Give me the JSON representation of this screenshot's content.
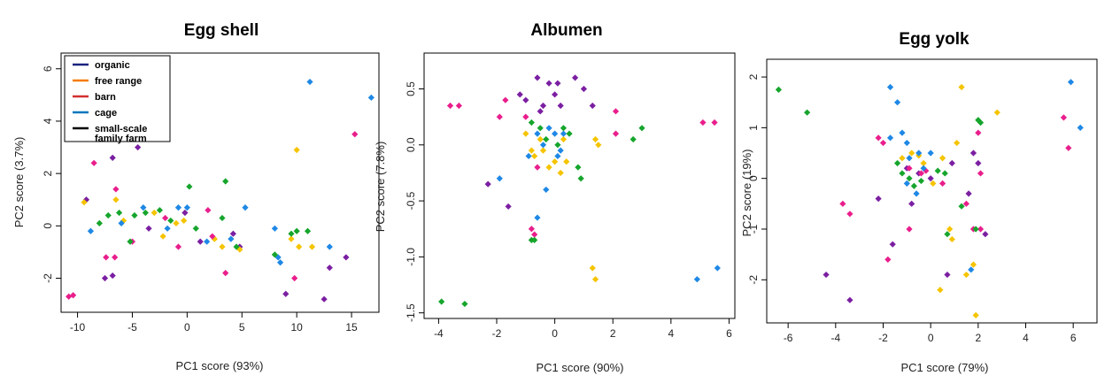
{
  "colors": {
    "organic": "#7b1fa2",
    "free_range": "#f5c400",
    "barn": "#e91e8c",
    "cage": "#1e88e5",
    "small_scale": "#16a52c"
  },
  "legend": [
    {
      "label": "organic",
      "line_color": "#1a237e"
    },
    {
      "label": "free range",
      "line_color": "#f57c00"
    },
    {
      "label": "barn",
      "line_color": "#d32f2f"
    },
    {
      "label": "cage",
      "line_color": "#0277bd"
    },
    {
      "label": "small-scale family farm",
      "lines": [
        "small-scale",
        "family farm"
      ],
      "line_color": "#000000"
    }
  ],
  "chart_data": [
    {
      "type": "scatter",
      "title": "Egg shell",
      "xlabel": "PC1 score (93%)",
      "ylabel": "PC2 score (3.7%)",
      "xlim": [
        -11.5,
        17.5
      ],
      "ylim": [
        -3.3,
        6.6
      ],
      "xticks": [
        -10,
        -5,
        0,
        5,
        10,
        15
      ],
      "yticks": [
        -2,
        0,
        2,
        4,
        6
      ],
      "series": [
        {
          "key": "organic",
          "points": [
            [
              -9.2,
              1.0
            ],
            [
              -7.5,
              -2.0
            ],
            [
              -6.8,
              -1.9
            ],
            [
              -6.8,
              2.6
            ],
            [
              -4.5,
              3.0
            ],
            [
              -3.5,
              -0.1
            ],
            [
              -0.2,
              0.5
            ],
            [
              1.2,
              -0.6
            ],
            [
              4.2,
              -0.3
            ],
            [
              4.8,
              -0.8
            ],
            [
              9.0,
              -2.6
            ],
            [
              12.5,
              -2.8
            ],
            [
              13.0,
              -1.6
            ],
            [
              14.5,
              -1.2
            ]
          ]
        },
        {
          "key": "free_range",
          "points": [
            [
              -9.4,
              0.9
            ],
            [
              -6.5,
              1.0
            ],
            [
              -5.8,
              0.2
            ],
            [
              -3.0,
              0.5
            ],
            [
              -2.2,
              -0.4
            ],
            [
              -1.0,
              0.1
            ],
            [
              -0.3,
              0.2
            ],
            [
              2.5,
              -0.5
            ],
            [
              3.2,
              -0.8
            ],
            [
              4.8,
              -0.9
            ],
            [
              10.0,
              2.9
            ],
            [
              10.2,
              -0.8
            ],
            [
              11.4,
              -0.8
            ],
            [
              9.5,
              -0.5
            ]
          ]
        },
        {
          "key": "barn",
          "points": [
            [
              -10.8,
              -2.7
            ],
            [
              -10.4,
              -2.65
            ],
            [
              -8.5,
              2.4
            ],
            [
              -7.4,
              -1.2
            ],
            [
              -6.6,
              -1.2
            ],
            [
              -6.5,
              1.4
            ],
            [
              -5.0,
              -0.6
            ],
            [
              -2.0,
              0.3
            ],
            [
              -0.8,
              -0.8
            ],
            [
              1.9,
              0.6
            ],
            [
              2.3,
              -0.4
            ],
            [
              3.5,
              -1.8
            ],
            [
              9.8,
              -2.0
            ],
            [
              15.3,
              3.5
            ]
          ]
        },
        {
          "key": "cage",
          "points": [
            [
              -8.8,
              -0.2
            ],
            [
              -6.0,
              0.1
            ],
            [
              -4.0,
              0.7
            ],
            [
              -1.8,
              -0.1
            ],
            [
              -0.8,
              0.7
            ],
            [
              0.0,
              0.7
            ],
            [
              1.8,
              -0.6
            ],
            [
              4.0,
              -0.5
            ],
            [
              5.3,
              0.7
            ],
            [
              8.0,
              -0.1
            ],
            [
              8.3,
              -1.2
            ],
            [
              8.5,
              -1.4
            ],
            [
              11.2,
              5.5
            ],
            [
              13.0,
              -0.8
            ],
            [
              16.8,
              4.9
            ]
          ]
        },
        {
          "key": "small_scale",
          "points": [
            [
              -8.0,
              0.1
            ],
            [
              -7.2,
              0.4
            ],
            [
              -6.2,
              0.5
            ],
            [
              -5.2,
              -0.6
            ],
            [
              -4.8,
              0.4
            ],
            [
              -3.8,
              0.5
            ],
            [
              -2.5,
              0.6
            ],
            [
              -1.5,
              0.2
            ],
            [
              0.2,
              1.5
            ],
            [
              0.8,
              -0.1
            ],
            [
              3.2,
              0.3
            ],
            [
              3.5,
              1.7
            ],
            [
              4.5,
              -0.8
            ],
            [
              8.0,
              -1.1
            ],
            [
              10.0,
              -0.2
            ],
            [
              11.0,
              -0.2
            ],
            [
              9.5,
              -0.3
            ]
          ]
        }
      ]
    },
    {
      "type": "scatter",
      "title": "Albumen",
      "xlabel": "PC1 score (90%)",
      "ylabel": "PC2 score (7.8%)",
      "xlim": [
        -4.5,
        6.2
      ],
      "ylim": [
        -1.55,
        0.82
      ],
      "xticks": [
        -4,
        -2,
        0,
        2,
        4,
        6
      ],
      "yticks": [
        -1.5,
        -1.0,
        -0.5,
        0.0,
        0.5
      ],
      "series": [
        {
          "key": "organic",
          "points": [
            [
              -2.3,
              -0.35
            ],
            [
              -1.6,
              -0.55
            ],
            [
              -1.2,
              0.45
            ],
            [
              -1.0,
              0.4
            ],
            [
              -0.6,
              0.6
            ],
            [
              -0.4,
              0.35
            ],
            [
              -0.2,
              0.55
            ],
            [
              0.0,
              0.45
            ],
            [
              0.1,
              0.55
            ],
            [
              0.2,
              0.35
            ],
            [
              0.7,
              0.6
            ],
            [
              1.0,
              0.5
            ],
            [
              1.3,
              0.35
            ],
            [
              -0.5,
              0.3
            ]
          ]
        },
        {
          "key": "free_range",
          "points": [
            [
              -1.0,
              0.1
            ],
            [
              -0.8,
              -0.05
            ],
            [
              -0.7,
              -0.1
            ],
            [
              -0.4,
              -0.05
            ],
            [
              -0.2,
              -0.2
            ],
            [
              0.0,
              -0.15
            ],
            [
              0.2,
              -0.25
            ],
            [
              0.4,
              -0.15
            ],
            [
              -0.5,
              0.05
            ],
            [
              0.3,
              0.05
            ],
            [
              1.4,
              0.05
            ],
            [
              1.5,
              0.0
            ],
            [
              1.3,
              -1.1
            ],
            [
              1.4,
              -1.2
            ]
          ]
        },
        {
          "key": "barn",
          "points": [
            [
              -3.6,
              0.35
            ],
            [
              -3.3,
              0.35
            ],
            [
              -1.9,
              0.25
            ],
            [
              -1.7,
              0.4
            ],
            [
              -1.0,
              0.25
            ],
            [
              -0.8,
              -0.75
            ],
            [
              -0.7,
              -0.8
            ],
            [
              2.1,
              0.3
            ],
            [
              2.1,
              0.1
            ],
            [
              5.1,
              0.2
            ],
            [
              5.5,
              0.2
            ],
            [
              -0.6,
              -0.2
            ]
          ]
        },
        {
          "key": "cage",
          "points": [
            [
              -1.9,
              -0.3
            ],
            [
              -0.9,
              -0.1
            ],
            [
              -0.6,
              0.1
            ],
            [
              -0.4,
              0.0
            ],
            [
              -0.2,
              0.15
            ],
            [
              0.0,
              0.1
            ],
            [
              0.1,
              -0.1
            ],
            [
              0.3,
              0.1
            ],
            [
              0.2,
              -0.05
            ],
            [
              -0.3,
              -0.4
            ],
            [
              -0.6,
              -0.65
            ],
            [
              4.9,
              -1.2
            ],
            [
              5.6,
              -1.1
            ]
          ]
        },
        {
          "key": "small_scale",
          "points": [
            [
              -3.9,
              -1.4
            ],
            [
              -3.1,
              -1.42
            ],
            [
              -0.8,
              0.2
            ],
            [
              -0.5,
              0.15
            ],
            [
              -0.3,
              0.05
            ],
            [
              0.1,
              0.0
            ],
            [
              0.3,
              0.15
            ],
            [
              0.5,
              0.1
            ],
            [
              0.8,
              -0.2
            ],
            [
              0.9,
              -0.3
            ],
            [
              2.7,
              0.05
            ],
            [
              3.0,
              0.15
            ],
            [
              -0.7,
              -0.85
            ],
            [
              -0.8,
              -0.85
            ]
          ]
        }
      ]
    },
    {
      "type": "scatter",
      "title": "Egg yolk",
      "xlabel": "PC1 score (79%)",
      "ylabel": "PC2 score (19%)",
      "xlim": [
        -6.9,
        7.0
      ],
      "ylim": [
        -2.85,
        2.35
      ],
      "xticks": [
        -6,
        -4,
        -2,
        0,
        2,
        4,
        6
      ],
      "yticks": [
        -2,
        -1,
        0,
        1,
        2
      ],
      "series": [
        {
          "key": "organic",
          "points": [
            [
              -4.4,
              -1.9
            ],
            [
              -3.4,
              -2.4
            ],
            [
              -2.2,
              -0.4
            ],
            [
              -1.6,
              -1.3
            ],
            [
              -0.8,
              -0.5
            ],
            [
              -0.5,
              0.1
            ],
            [
              0.0,
              0.0
            ],
            [
              0.7,
              -1.9
            ],
            [
              0.9,
              0.3
            ],
            [
              1.6,
              -0.3
            ],
            [
              2.0,
              0.3
            ],
            [
              2.3,
              -1.1
            ],
            [
              -1.0,
              0.2
            ],
            [
              1.8,
              0.5
            ]
          ]
        },
        {
          "key": "free_range",
          "points": [
            [
              -1.2,
              0.4
            ],
            [
              -0.8,
              0.5
            ],
            [
              -0.5,
              0.45
            ],
            [
              -0.3,
              0.3
            ],
            [
              0.1,
              -0.1
            ],
            [
              0.5,
              0.4
            ],
            [
              0.8,
              -1.0
            ],
            [
              0.9,
              -1.2
            ],
            [
              1.1,
              0.7
            ],
            [
              1.3,
              1.8
            ],
            [
              1.5,
              -1.9
            ],
            [
              1.8,
              -1.7
            ],
            [
              1.9,
              -2.7
            ],
            [
              2.8,
              1.3
            ],
            [
              0.4,
              -2.2
            ]
          ]
        },
        {
          "key": "barn",
          "points": [
            [
              -3.7,
              -0.5
            ],
            [
              -3.4,
              -0.7
            ],
            [
              -2.2,
              0.8
            ],
            [
              -2.0,
              0.7
            ],
            [
              -1.8,
              -1.6
            ],
            [
              -0.9,
              0.2
            ],
            [
              -0.4,
              0.1
            ],
            [
              -0.2,
              0.15
            ],
            [
              0.5,
              -0.1
            ],
            [
              1.5,
              -0.5
            ],
            [
              1.8,
              -1.0
            ],
            [
              2.0,
              0.9
            ],
            [
              2.1,
              0.1
            ],
            [
              2.1,
              -1.0
            ],
            [
              5.6,
              1.2
            ],
            [
              5.8,
              0.6
            ],
            [
              -0.9,
              -1.0
            ]
          ]
        },
        {
          "key": "cage",
          "points": [
            [
              -1.7,
              1.8
            ],
            [
              -1.4,
              1.5
            ],
            [
              -1.7,
              0.8
            ],
            [
              -1.2,
              0.9
            ],
            [
              -1.0,
              0.7
            ],
            [
              -0.9,
              0.4
            ],
            [
              -0.5,
              0.5
            ],
            [
              -0.3,
              0.2
            ],
            [
              0.0,
              0.5
            ],
            [
              -1.0,
              -0.1
            ],
            [
              -0.6,
              -0.3
            ],
            [
              1.7,
              -1.8
            ],
            [
              5.9,
              1.9
            ],
            [
              6.3,
              1.0
            ]
          ]
        },
        {
          "key": "small_scale",
          "points": [
            [
              -6.4,
              1.75
            ],
            [
              -5.2,
              1.3
            ],
            [
              -1.4,
              0.3
            ],
            [
              -1.2,
              0.1
            ],
            [
              -0.9,
              0.0
            ],
            [
              -0.7,
              -0.15
            ],
            [
              -0.4,
              -0.05
            ],
            [
              0.3,
              0.15
            ],
            [
              0.6,
              0.1
            ],
            [
              1.3,
              -0.55
            ],
            [
              2.0,
              1.15
            ],
            [
              2.1,
              1.1
            ],
            [
              0.7,
              -1.1
            ],
            [
              1.9,
              -1.0
            ]
          ]
        }
      ]
    }
  ]
}
